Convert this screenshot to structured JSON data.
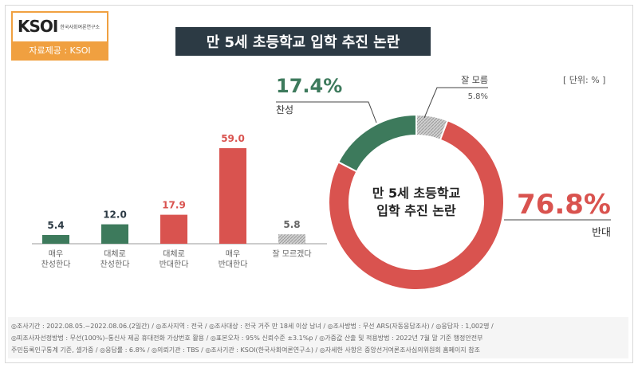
{
  "logo": {
    "mark": "KSOI",
    "sub": "한국사회여론연구소",
    "source": "자료제공 : KSOI"
  },
  "title": "만 5세 초등학교 입학 추진 논란",
  "unit": "[ 단위: % ]",
  "colors": {
    "green": "#3d7a5c",
    "red": "#d9534f",
    "gray": "#bdbdbd",
    "dark": "#2c3a44"
  },
  "chart_data": [
    {
      "type": "bar",
      "categories": [
        "매우\n찬성한다",
        "대체로\n찬성한다",
        "대체로\n반대한다",
        "매우\n반대한다",
        "잘 모르겠다"
      ],
      "values": [
        5.4,
        12.0,
        17.9,
        59.0,
        5.8
      ],
      "value_labels": [
        "5.4",
        "12.0",
        "17.9",
        "59.0",
        "5.8"
      ],
      "colors": [
        "green",
        "green",
        "red",
        "red",
        "gray"
      ],
      "ylim": [
        0,
        60
      ]
    },
    {
      "type": "pie",
      "center_text": [
        "만 5세 초등학교",
        "입학 추진 논란"
      ],
      "slices": [
        {
          "label": "반대",
          "value": 76.8,
          "value_label": "76.8%",
          "color": "red"
        },
        {
          "label": "찬성",
          "value": 17.4,
          "value_label": "17.4%",
          "color": "green"
        },
        {
          "label": "잘 모름",
          "value": 5.8,
          "value_label": "5.8%",
          "color": "gray"
        }
      ]
    }
  ],
  "notes": [
    "◎조사기간 : 2022.08.05.~2022.08.06.(2일간) / ◎조사지역 : 전국 / ◎조사대상 : 전국 거주 만 18세 이상 남녀 / ◎조사방법 : 무선 ARS(자동응답조사) / ◎응답자 : 1,002명 /",
    "◎피조사자선정방법 : 무선(100%)–통신사 제공 휴대전화 가상번호 활용 / ◎표본오차 : 95% 신뢰수준 ±3.1%p / ◎가중값 산출 및 적용방법 : 2022년 7월 말 기준 행정안전부",
    "주민등록인구통계 기준, 셀가중 / ◎응답률 : 6.8% / ◎의뢰기관 : TBS / ◎조사기관 : KSOI(한국사회여론연구소) / ◎자세한 사항은 중앙선거여론조사심의위원회 홈페이지 참조"
  ]
}
